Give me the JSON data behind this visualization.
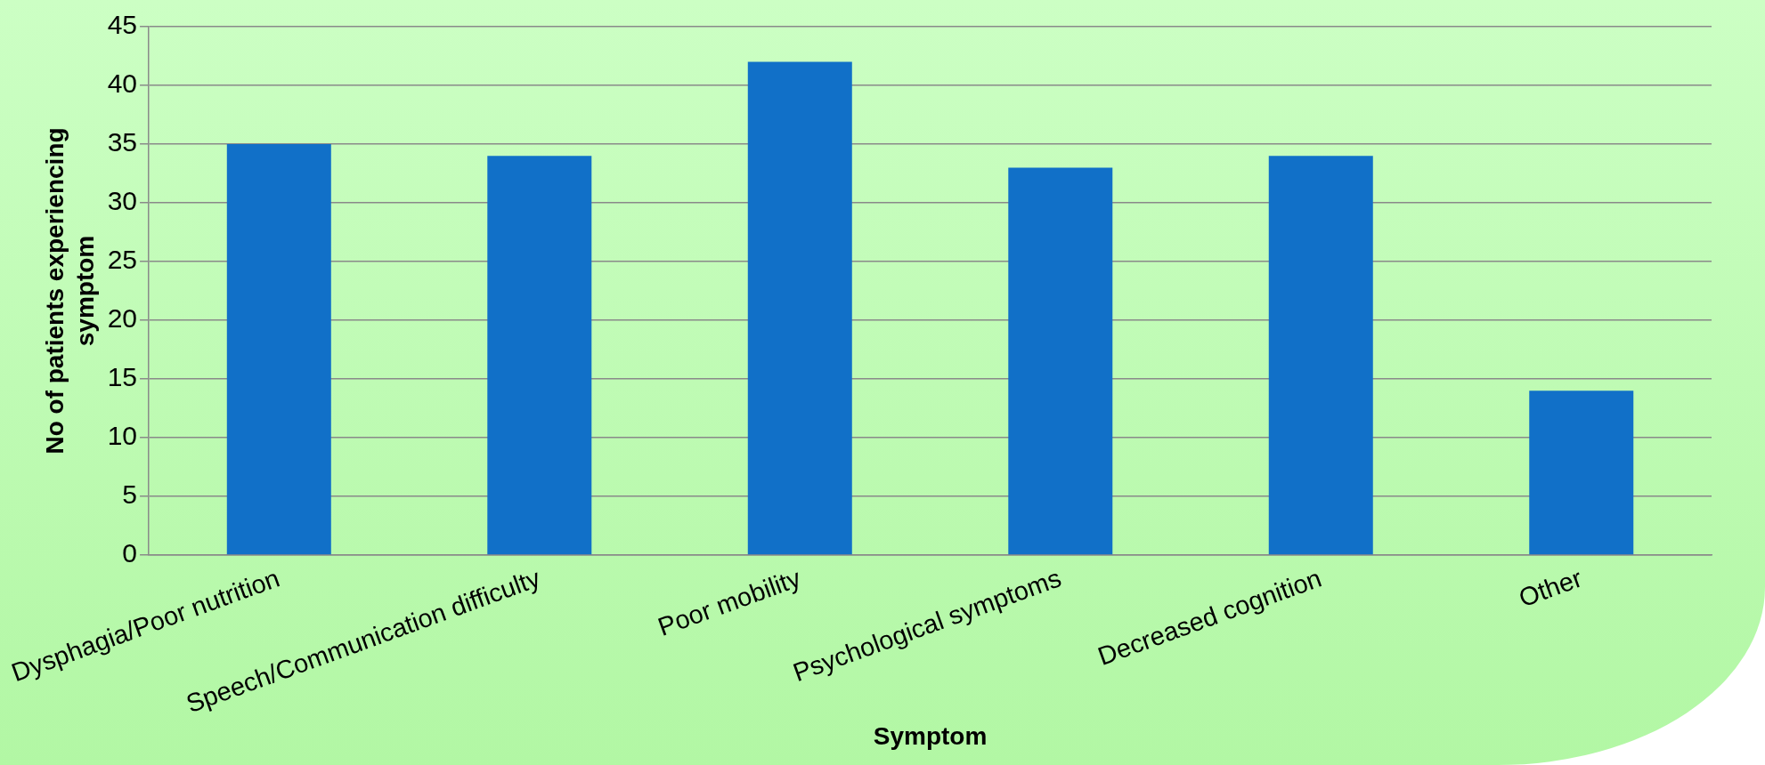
{
  "chart_data": {
    "type": "bar",
    "xlabel": "Symptom",
    "ylabel": "No of patients experiencing symptom",
    "categories": [
      "Dysphagia/Poor nutrition",
      "Speech/Communication difficulty",
      "Poor mobility",
      "Psychological symptoms",
      "Decreased cognition",
      "Other"
    ],
    "values": [
      35,
      34,
      42,
      33,
      34,
      14
    ],
    "color": "#1170c8",
    "ylim": [
      0,
      45
    ],
    "yticks": [
      0,
      5,
      10,
      15,
      20,
      25,
      30,
      35,
      40,
      45
    ],
    "grid": "y",
    "legend": false
  }
}
